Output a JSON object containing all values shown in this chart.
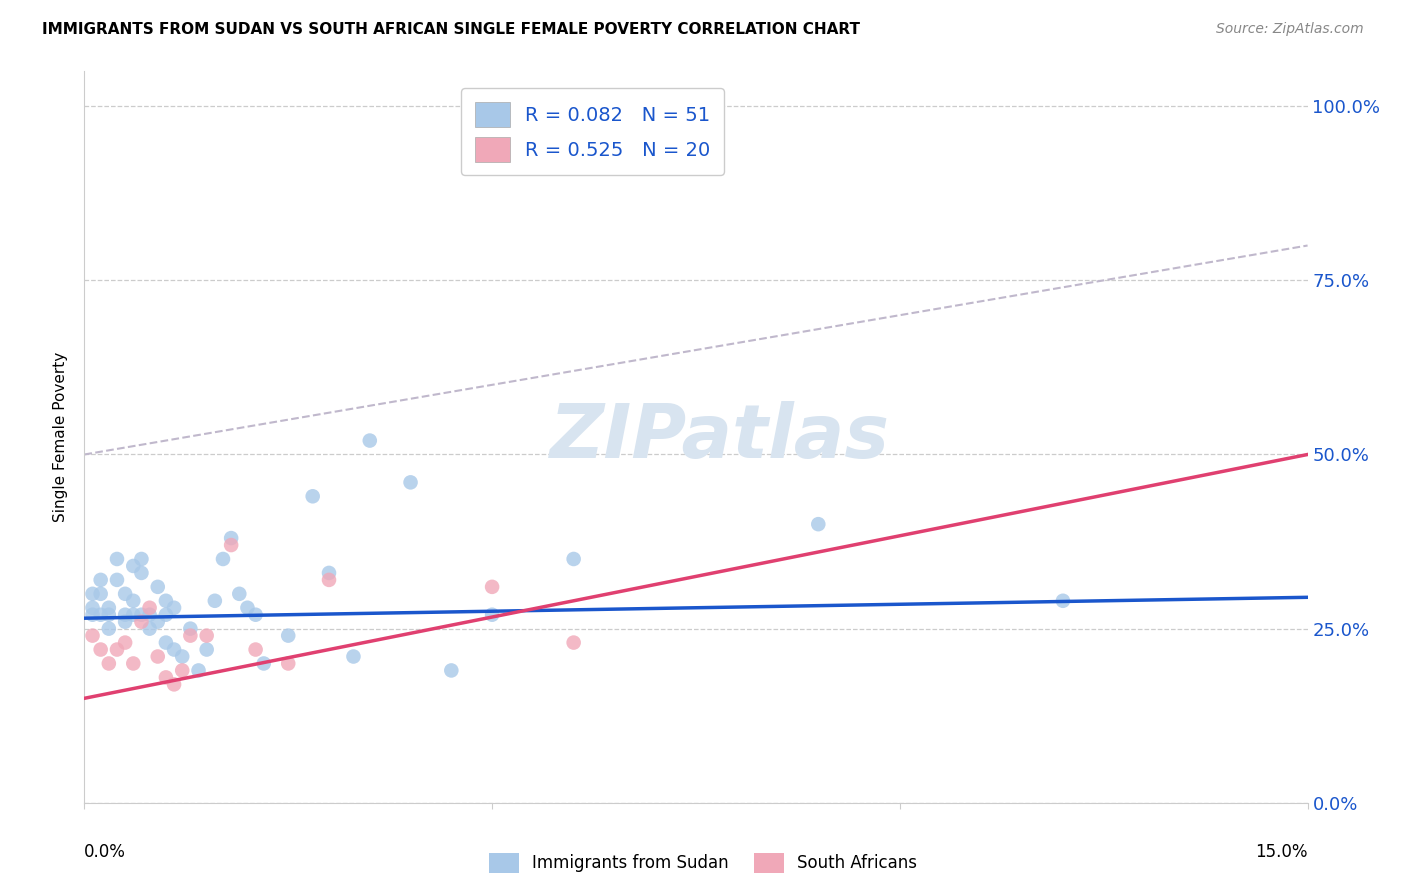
{
  "title": "IMMIGRANTS FROM SUDAN VS SOUTH AFRICAN SINGLE FEMALE POVERTY CORRELATION CHART",
  "source": "Source: ZipAtlas.com",
  "ylabel": "Single Female Poverty",
  "ytick_vals": [
    0.0,
    0.25,
    0.5,
    0.75,
    1.0
  ],
  "ytick_labels": [
    "0.0%",
    "25.0%",
    "50.0%",
    "75.0%",
    "100.0%"
  ],
  "xmin": 0.0,
  "xmax": 0.15,
  "ymin": 0.0,
  "ymax": 1.05,
  "blue_color": "#a8c8e8",
  "pink_color": "#f0a8b8",
  "blue_line_color": "#1a56cc",
  "pink_line_color": "#e04070",
  "dashed_line_color": "#c0b8cc",
  "watermark_color": "#d8e4f0",
  "blue_scatter_x": [
    0.001,
    0.001,
    0.001,
    0.002,
    0.002,
    0.002,
    0.003,
    0.003,
    0.003,
    0.004,
    0.004,
    0.005,
    0.005,
    0.005,
    0.006,
    0.006,
    0.006,
    0.007,
    0.007,
    0.007,
    0.008,
    0.008,
    0.009,
    0.009,
    0.01,
    0.01,
    0.01,
    0.011,
    0.011,
    0.012,
    0.013,
    0.014,
    0.015,
    0.016,
    0.017,
    0.018,
    0.019,
    0.02,
    0.021,
    0.022,
    0.025,
    0.028,
    0.03,
    0.033,
    0.035,
    0.04,
    0.045,
    0.05,
    0.06,
    0.09,
    0.12
  ],
  "blue_scatter_y": [
    0.27,
    0.28,
    0.3,
    0.27,
    0.3,
    0.32,
    0.28,
    0.27,
    0.25,
    0.35,
    0.32,
    0.27,
    0.3,
    0.26,
    0.34,
    0.27,
    0.29,
    0.35,
    0.33,
    0.27,
    0.27,
    0.25,
    0.31,
    0.26,
    0.29,
    0.27,
    0.23,
    0.28,
    0.22,
    0.21,
    0.25,
    0.19,
    0.22,
    0.29,
    0.35,
    0.38,
    0.3,
    0.28,
    0.27,
    0.2,
    0.24,
    0.44,
    0.33,
    0.21,
    0.52,
    0.46,
    0.19,
    0.27,
    0.35,
    0.4,
    0.29
  ],
  "pink_scatter_x": [
    0.001,
    0.002,
    0.003,
    0.004,
    0.005,
    0.006,
    0.007,
    0.008,
    0.009,
    0.01,
    0.011,
    0.012,
    0.013,
    0.015,
    0.018,
    0.021,
    0.025,
    0.03,
    0.05,
    0.06
  ],
  "pink_scatter_y": [
    0.24,
    0.22,
    0.2,
    0.22,
    0.23,
    0.2,
    0.26,
    0.28,
    0.21,
    0.18,
    0.17,
    0.19,
    0.24,
    0.24,
    0.37,
    0.22,
    0.2,
    0.32,
    0.31,
    0.23
  ],
  "blue_regline_x": [
    0.0,
    0.15
  ],
  "blue_regline_y": [
    0.265,
    0.295
  ],
  "pink_regline_x": [
    0.0,
    0.15
  ],
  "pink_regline_y": [
    0.15,
    0.5
  ],
  "dashed_line_x": [
    0.0,
    0.15
  ],
  "dashed_line_y": [
    0.5,
    0.8
  ]
}
